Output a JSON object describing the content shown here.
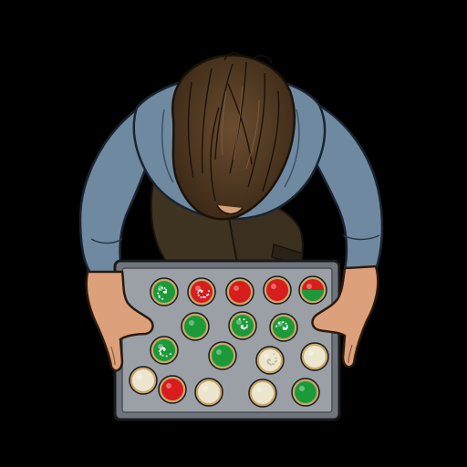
{
  "scene": {
    "background": "#000000",
    "character": {
      "view": "top-down",
      "hair_color": "#4a3520",
      "shirt_color": "#6f8aa0",
      "pants_color": "#3f3322",
      "skin_color": "#dca07a"
    },
    "tray": {
      "color": "#9aa0a6",
      "rim_color": "#6e757c",
      "rows": [
        [
          "green-sprinkle",
          "red-sprinkle",
          "red",
          "red",
          "red-green"
        ],
        [
          "green",
          "green-sprinkle",
          "green-sprinkle"
        ],
        [
          "green-sprinkle",
          "green",
          "white-sprinkle",
          "white"
        ],
        [
          "white",
          "red",
          "white",
          "white",
          "green"
        ]
      ]
    },
    "cookie_colors": {
      "green": "#1c9a3a",
      "red": "#d91c1c",
      "white": "#ece6cf",
      "outline": "#c9a86a"
    }
  }
}
